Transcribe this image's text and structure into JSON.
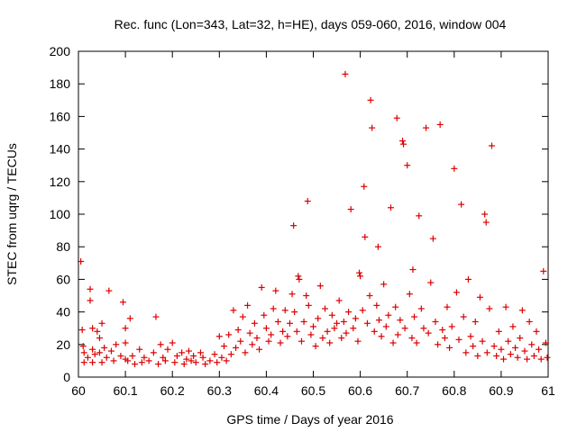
{
  "chart_data": {
    "type": "scatter",
    "title": "Rec. func (Lon=343, Lat=32, h=HE), days 059-060, 2016, window 004",
    "xlabel": "GPS time / Days of year 2016",
    "ylabel": "STEC from uqrg / TECUs",
    "xlim": [
      60,
      61
    ],
    "ylim": [
      0,
      200
    ],
    "xticks": [
      60,
      60.1,
      60.2,
      60.3,
      60.4,
      60.5,
      60.6,
      60.7,
      60.8,
      60.9,
      61
    ],
    "xtick_labels": [
      "60",
      "60.1",
      "60.2",
      "60.3",
      "60.4",
      "60.5",
      "60.6",
      "60.7",
      "60.8",
      "60.9",
      "61"
    ],
    "yticks": [
      0,
      20,
      40,
      60,
      80,
      100,
      120,
      140,
      160,
      180,
      200
    ],
    "ytick_labels": [
      "0",
      "20",
      "40",
      "60",
      "80",
      "100",
      "120",
      "140",
      "160",
      "180",
      "200"
    ],
    "marker": "plus",
    "color": "#dd0000",
    "grid": false,
    "series": [
      {
        "name": "STEC",
        "points": [
          [
            60.005,
            71
          ],
          [
            60.008,
            29
          ],
          [
            60.01,
            19
          ],
          [
            60.012,
            15
          ],
          [
            60.012,
            9
          ],
          [
            60.02,
            12
          ],
          [
            60.025,
            54
          ],
          [
            60.025,
            47
          ],
          [
            60.03,
            30
          ],
          [
            60.03,
            17
          ],
          [
            60.03,
            9
          ],
          [
            60.035,
            14
          ],
          [
            60.04,
            28
          ],
          [
            60.045,
            24
          ],
          [
            60.045,
            15
          ],
          [
            60.05,
            33
          ],
          [
            60.05,
            9
          ],
          [
            60.055,
            18
          ],
          [
            60.06,
            12
          ],
          [
            60.065,
            53
          ],
          [
            60.07,
            16
          ],
          [
            60.075,
            10
          ],
          [
            60.08,
            20
          ],
          [
            60.09,
            13
          ],
          [
            60.095,
            46
          ],
          [
            60.1,
            30
          ],
          [
            60.1,
            21
          ],
          [
            60.1,
            11
          ],
          [
            60.105,
            10
          ],
          [
            60.11,
            36
          ],
          [
            60.115,
            13
          ],
          [
            60.12,
            8
          ],
          [
            60.13,
            17
          ],
          [
            60.135,
            9
          ],
          [
            60.14,
            12
          ],
          [
            60.15,
            10
          ],
          [
            60.16,
            15
          ],
          [
            60.165,
            37
          ],
          [
            60.17,
            8
          ],
          [
            60.175,
            20
          ],
          [
            60.18,
            12
          ],
          [
            60.185,
            10
          ],
          [
            60.19,
            17
          ],
          [
            60.2,
            21
          ],
          [
            60.205,
            9
          ],
          [
            60.21,
            13
          ],
          [
            60.22,
            15
          ],
          [
            60.225,
            8
          ],
          [
            60.23,
            11
          ],
          [
            60.235,
            16
          ],
          [
            60.24,
            10
          ],
          [
            60.245,
            13
          ],
          [
            60.25,
            9
          ],
          [
            60.26,
            15
          ],
          [
            60.265,
            12
          ],
          [
            60.27,
            8
          ],
          [
            60.28,
            10
          ],
          [
            60.29,
            14
          ],
          [
            60.295,
            9
          ],
          [
            60.3,
            25
          ],
          [
            60.305,
            12
          ],
          [
            60.31,
            19
          ],
          [
            60.315,
            10
          ],
          [
            60.32,
            26
          ],
          [
            60.325,
            14
          ],
          [
            60.33,
            41
          ],
          [
            60.335,
            18
          ],
          [
            60.34,
            29
          ],
          [
            60.345,
            22
          ],
          [
            60.35,
            37
          ],
          [
            60.355,
            15
          ],
          [
            60.36,
            44
          ],
          [
            60.365,
            27
          ],
          [
            60.37,
            20
          ],
          [
            60.375,
            33
          ],
          [
            60.38,
            24
          ],
          [
            60.385,
            17
          ],
          [
            60.39,
            55
          ],
          [
            60.395,
            38
          ],
          [
            60.4,
            30
          ],
          [
            60.405,
            22
          ],
          [
            60.41,
            26
          ],
          [
            60.415,
            42
          ],
          [
            60.42,
            53
          ],
          [
            60.425,
            34
          ],
          [
            60.43,
            21
          ],
          [
            60.435,
            28
          ],
          [
            60.44,
            41
          ],
          [
            60.445,
            25
          ],
          [
            60.45,
            33
          ],
          [
            60.455,
            51
          ],
          [
            60.458,
            93
          ],
          [
            60.46,
            40
          ],
          [
            60.465,
            28
          ],
          [
            60.468,
            62
          ],
          [
            60.47,
            60
          ],
          [
            60.475,
            22
          ],
          [
            60.48,
            34
          ],
          [
            60.485,
            50
          ],
          [
            60.488,
            108
          ],
          [
            60.49,
            44
          ],
          [
            60.495,
            26
          ],
          [
            60.5,
            31
          ],
          [
            60.505,
            19
          ],
          [
            60.51,
            36
          ],
          [
            60.515,
            56
          ],
          [
            60.52,
            24
          ],
          [
            60.525,
            42
          ],
          [
            60.53,
            28
          ],
          [
            60.535,
            21
          ],
          [
            60.54,
            38
          ],
          [
            60.545,
            30
          ],
          [
            60.55,
            33
          ],
          [
            60.555,
            47
          ],
          [
            60.56,
            24
          ],
          [
            60.565,
            34
          ],
          [
            60.568,
            186
          ],
          [
            60.57,
            27
          ],
          [
            60.575,
            40
          ],
          [
            60.58,
            103
          ],
          [
            60.585,
            30
          ],
          [
            60.59,
            36
          ],
          [
            60.595,
            22
          ],
          [
            60.598,
            64
          ],
          [
            60.6,
            62
          ],
          [
            60.605,
            41
          ],
          [
            60.608,
            117
          ],
          [
            60.61,
            86
          ],
          [
            60.615,
            33
          ],
          [
            60.62,
            50
          ],
          [
            60.622,
            170
          ],
          [
            60.625,
            153
          ],
          [
            60.63,
            28
          ],
          [
            60.635,
            44
          ],
          [
            60.638,
            80
          ],
          [
            60.64,
            35
          ],
          [
            60.645,
            25
          ],
          [
            60.65,
            57
          ],
          [
            60.655,
            31
          ],
          [
            60.66,
            38
          ],
          [
            60.665,
            104
          ],
          [
            60.67,
            21
          ],
          [
            60.675,
            43
          ],
          [
            60.678,
            159
          ],
          [
            60.68,
            26
          ],
          [
            60.685,
            35
          ],
          [
            60.69,
            145
          ],
          [
            60.692,
            143
          ],
          [
            60.695,
            30
          ],
          [
            60.7,
            130
          ],
          [
            60.705,
            51
          ],
          [
            60.71,
            24
          ],
          [
            60.712,
            66
          ],
          [
            60.715,
            37
          ],
          [
            60.72,
            21
          ],
          [
            60.725,
            99
          ],
          [
            60.73,
            42
          ],
          [
            60.735,
            30
          ],
          [
            60.74,
            153
          ],
          [
            60.745,
            27
          ],
          [
            60.75,
            58
          ],
          [
            60.755,
            85
          ],
          [
            60.76,
            34
          ],
          [
            60.765,
            20
          ],
          [
            60.77,
            155
          ],
          [
            60.775,
            29
          ],
          [
            60.78,
            24
          ],
          [
            60.785,
            43
          ],
          [
            60.79,
            18
          ],
          [
            60.795,
            31
          ],
          [
            60.8,
            128
          ],
          [
            60.805,
            52
          ],
          [
            60.81,
            23
          ],
          [
            60.815,
            106
          ],
          [
            60.82,
            37
          ],
          [
            60.825,
            15
          ],
          [
            60.83,
            60
          ],
          [
            60.835,
            25
          ],
          [
            60.84,
            19
          ],
          [
            60.845,
            34
          ],
          [
            60.85,
            13
          ],
          [
            60.855,
            49
          ],
          [
            60.86,
            22
          ],
          [
            60.865,
            100
          ],
          [
            60.868,
            95
          ],
          [
            60.87,
            15
          ],
          [
            60.875,
            42
          ],
          [
            60.88,
            142
          ],
          [
            60.885,
            19
          ],
          [
            60.89,
            13
          ],
          [
            60.895,
            28
          ],
          [
            60.9,
            17
          ],
          [
            60.905,
            11
          ],
          [
            60.91,
            43
          ],
          [
            60.915,
            22
          ],
          [
            60.92,
            14
          ],
          [
            60.925,
            31
          ],
          [
            60.93,
            18
          ],
          [
            60.935,
            12
          ],
          [
            60.94,
            24
          ],
          [
            60.945,
            41
          ],
          [
            60.95,
            16
          ],
          [
            60.955,
            11
          ],
          [
            60.96,
            34
          ],
          [
            60.965,
            20
          ],
          [
            60.97,
            13
          ],
          [
            60.975,
            28
          ],
          [
            60.98,
            17
          ],
          [
            60.985,
            11
          ],
          [
            60.99,
            65
          ],
          [
            60.995,
            21
          ],
          [
            60.998,
            12
          ]
        ]
      }
    ]
  }
}
